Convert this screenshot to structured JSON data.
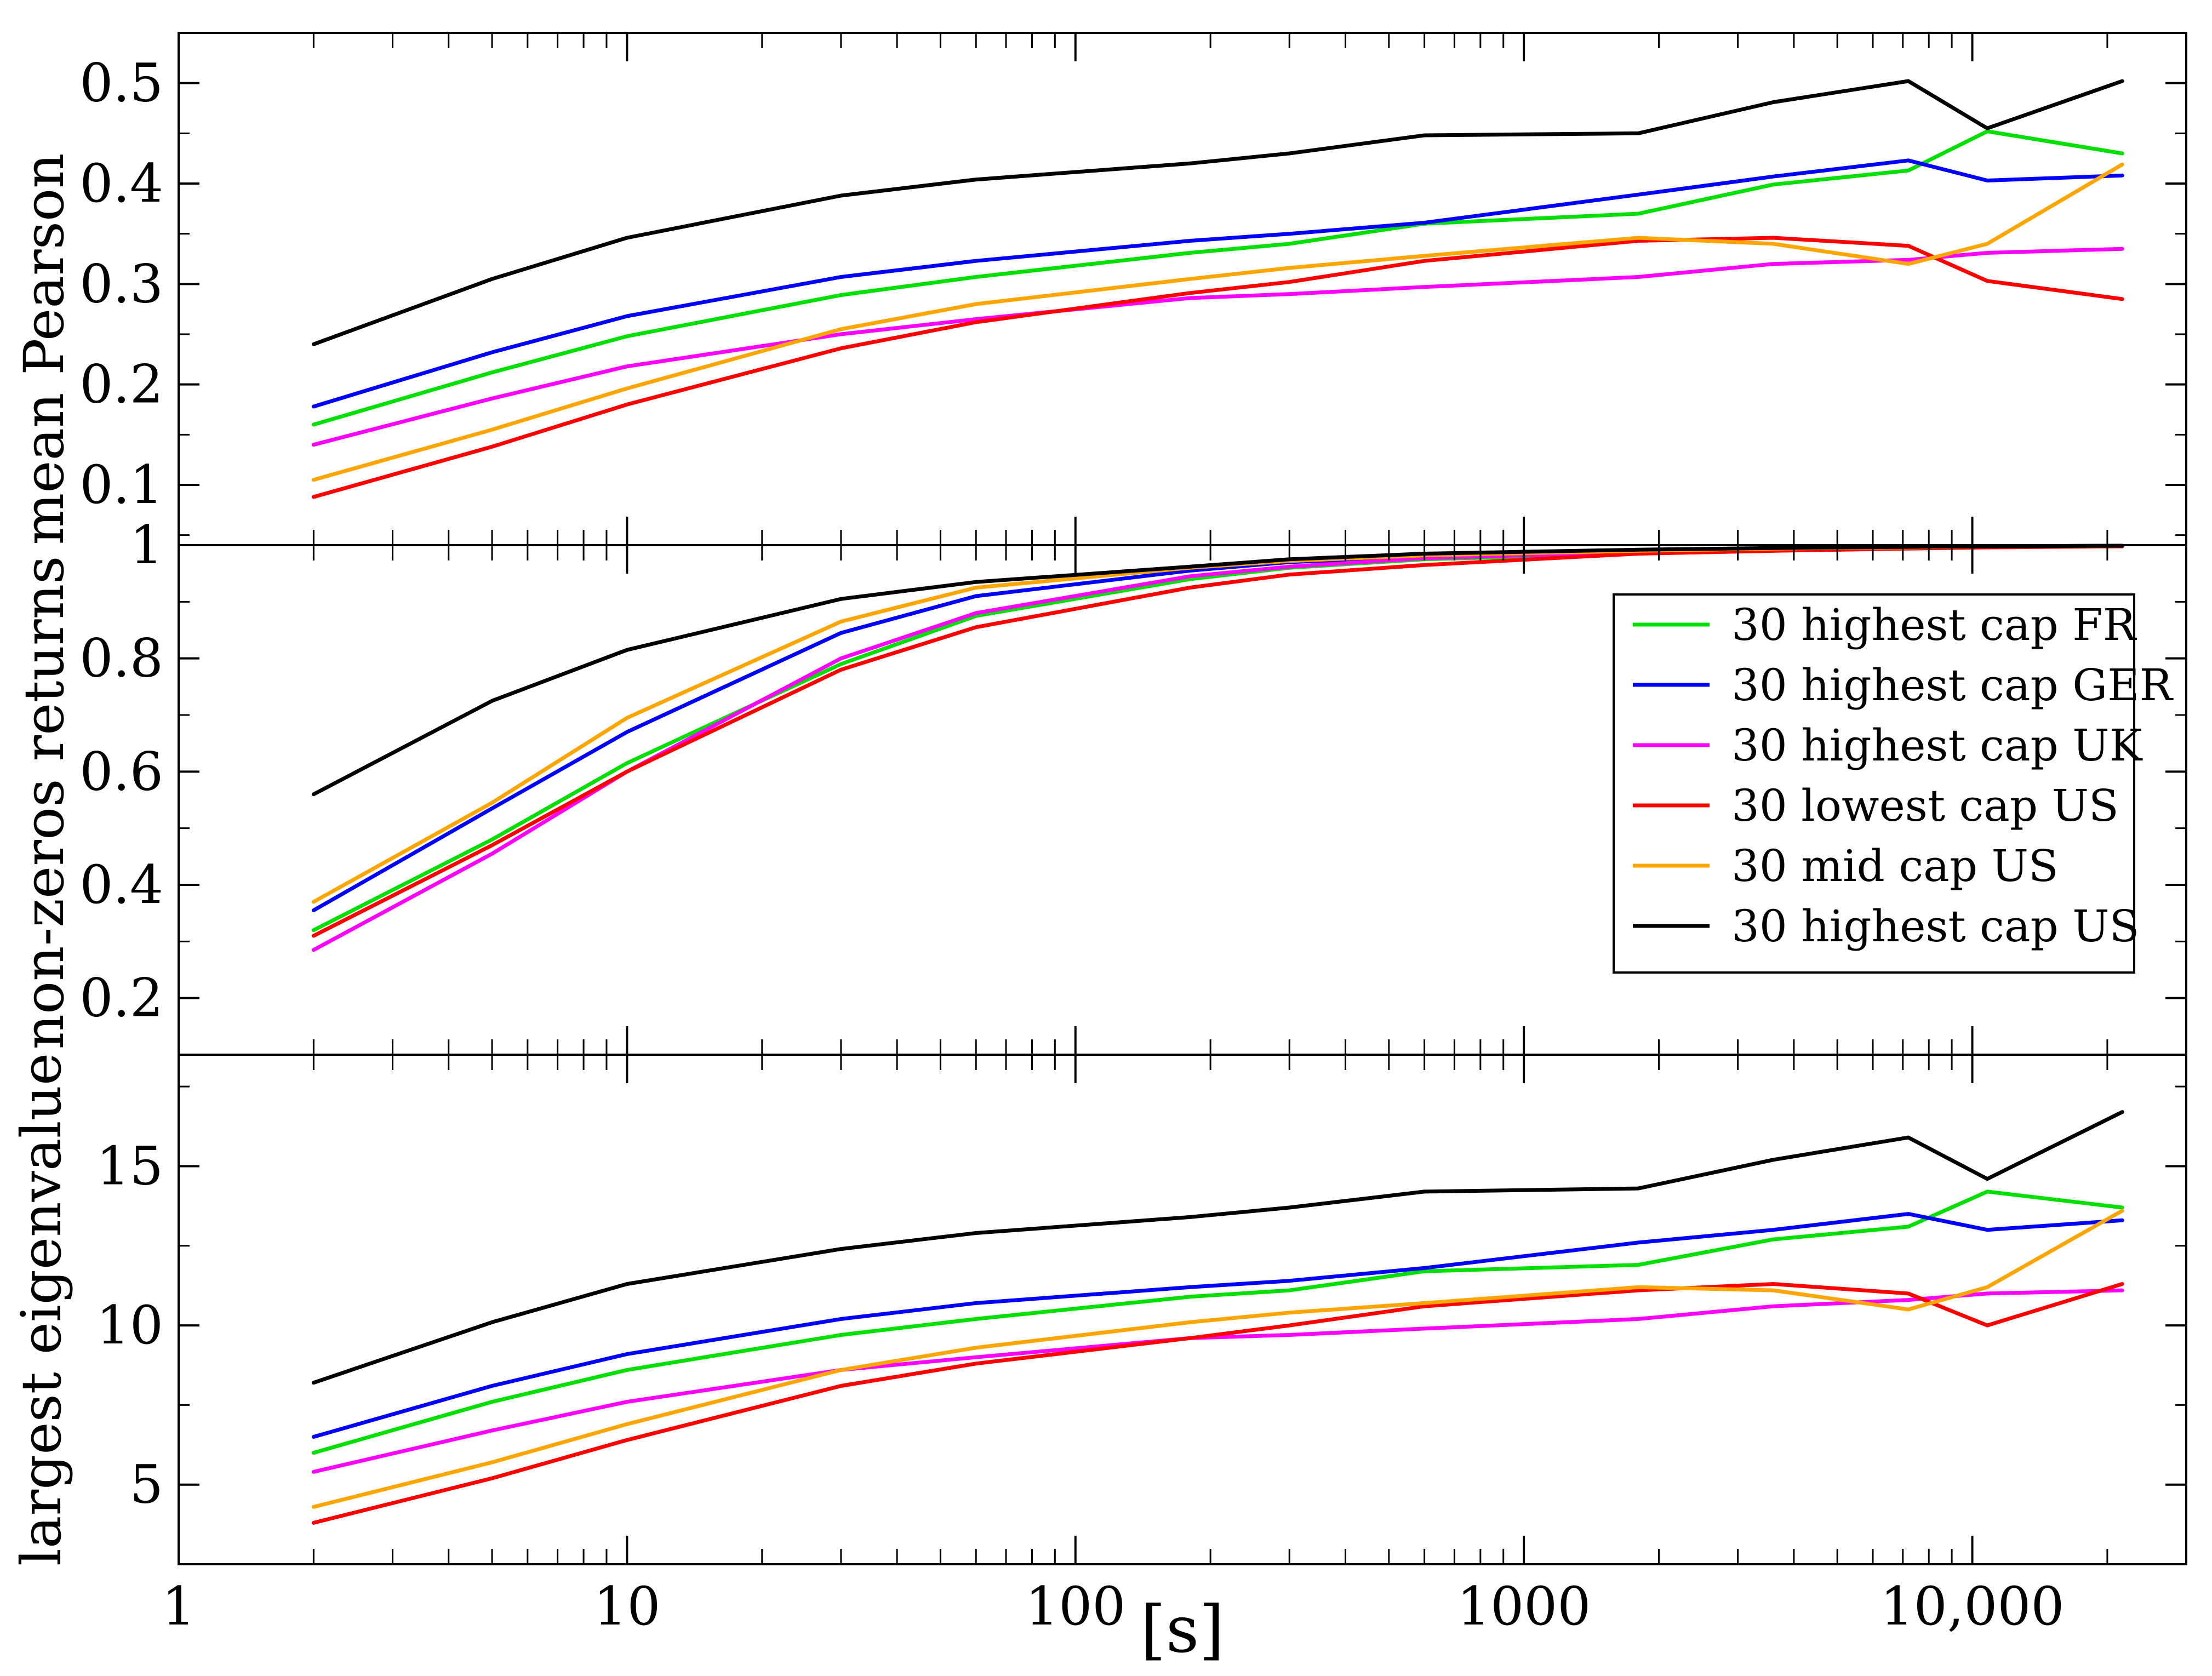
{
  "chart_data": [
    {
      "type": "line",
      "ylabel": "mean Pearson",
      "xscale": "log",
      "xlim": [
        1,
        30000
      ],
      "ylim": [
        0.04,
        0.55
      ],
      "yticks": [
        0.1,
        0.2,
        0.3,
        0.4,
        0.5
      ],
      "ytick_labels": [
        "0.1",
        "0.2",
        "0.3",
        "0.4",
        "0.5"
      ],
      "series": [
        {
          "name": "30 highest cap FR",
          "color": "#00e000",
          "x": [
            2,
            5,
            10,
            30,
            60,
            180,
            300,
            600,
            1800,
            3600,
            7200,
            10800,
            21600
          ],
          "y": [
            0.16,
            0.212,
            0.248,
            0.289,
            0.307,
            0.331,
            0.34,
            0.36,
            0.37,
            0.399,
            0.413,
            0.452,
            0.43
          ]
        },
        {
          "name": "30 highest cap GER",
          "color": "#0000ff",
          "x": [
            2,
            5,
            10,
            30,
            60,
            180,
            300,
            600,
            1800,
            3600,
            7200,
            10800,
            21600
          ],
          "y": [
            0.178,
            0.232,
            0.268,
            0.307,
            0.323,
            0.343,
            0.35,
            0.361,
            0.389,
            0.407,
            0.423,
            0.403,
            0.408
          ]
        },
        {
          "name": "30 highest cap UK",
          "color": "#ff00ff",
          "x": [
            2,
            5,
            10,
            30,
            60,
            180,
            300,
            600,
            1800,
            3600,
            7200,
            10800,
            21600
          ],
          "y": [
            0.14,
            0.186,
            0.218,
            0.25,
            0.265,
            0.286,
            0.29,
            0.297,
            0.307,
            0.32,
            0.324,
            0.331,
            0.335
          ]
        },
        {
          "name": "30 lowest cap US",
          "color": "#ff0000",
          "x": [
            2,
            5,
            10,
            30,
            60,
            180,
            300,
            600,
            1800,
            3600,
            7200,
            10800,
            21600
          ],
          "y": [
            0.088,
            0.138,
            0.18,
            0.236,
            0.262,
            0.291,
            0.302,
            0.323,
            0.343,
            0.346,
            0.338,
            0.303,
            0.285
          ]
        },
        {
          "name": "30 mid cap US",
          "color": "#ffa500",
          "x": [
            2,
            5,
            10,
            30,
            60,
            180,
            300,
            600,
            1800,
            3600,
            7200,
            10800,
            21600
          ],
          "y": [
            0.105,
            0.155,
            0.196,
            0.255,
            0.28,
            0.305,
            0.316,
            0.328,
            0.346,
            0.34,
            0.32,
            0.34,
            0.419
          ]
        },
        {
          "name": "30 highest cap US",
          "color": "#000000",
          "x": [
            2,
            5,
            10,
            30,
            60,
            180,
            300,
            600,
            1800,
            3600,
            7200,
            10800,
            21600
          ],
          "y": [
            0.24,
            0.305,
            0.346,
            0.388,
            0.404,
            0.42,
            0.43,
            0.448,
            0.45,
            0.481,
            0.502,
            0.455,
            0.502
          ]
        }
      ]
    },
    {
      "type": "line",
      "ylabel": "non-zeros returns",
      "xscale": "log",
      "xlim": [
        1,
        30000
      ],
      "ylim": [
        0.1,
        1.0
      ],
      "yticks": [
        0.2,
        0.4,
        0.6,
        0.8,
        1.0
      ],
      "ytick_labels": [
        "0.2",
        "0.4",
        "0.6",
        "0.8",
        "1"
      ],
      "series": [
        {
          "name": "30 highest cap FR",
          "color": "#00e000",
          "x": [
            2,
            5,
            10,
            30,
            60,
            180,
            300,
            600,
            1800,
            3600,
            7200,
            10800,
            21600
          ],
          "y": [
            0.32,
            0.48,
            0.615,
            0.79,
            0.875,
            0.94,
            0.96,
            0.975,
            0.985,
            0.99,
            0.995,
            0.997,
            0.998
          ]
        },
        {
          "name": "30 highest cap GER",
          "color": "#0000ff",
          "x": [
            2,
            5,
            10,
            30,
            60,
            180,
            300,
            600,
            1800,
            3600,
            7200,
            10800,
            21600
          ],
          "y": [
            0.355,
            0.535,
            0.67,
            0.845,
            0.91,
            0.955,
            0.97,
            0.98,
            0.99,
            0.993,
            0.996,
            0.998,
            0.999
          ]
        },
        {
          "name": "30 highest cap UK",
          "color": "#ff00ff",
          "x": [
            2,
            5,
            10,
            30,
            60,
            180,
            300,
            600,
            1800,
            3600,
            7200,
            10800,
            21600
          ],
          "y": [
            0.285,
            0.455,
            0.6,
            0.8,
            0.88,
            0.945,
            0.962,
            0.977,
            0.988,
            0.992,
            0.995,
            0.997,
            0.998
          ]
        },
        {
          "name": "30 lowest cap US",
          "color": "#ff0000",
          "x": [
            2,
            5,
            10,
            30,
            60,
            180,
            300,
            600,
            1800,
            3600,
            7200,
            10800,
            21600
          ],
          "y": [
            0.31,
            0.47,
            0.6,
            0.78,
            0.855,
            0.925,
            0.948,
            0.965,
            0.985,
            0.99,
            0.994,
            0.996,
            0.998
          ]
        },
        {
          "name": "30 mid cap US",
          "color": "#ffa500",
          "x": [
            2,
            5,
            10,
            30,
            60,
            180,
            300,
            600,
            1800,
            3600,
            7200,
            10800,
            21600
          ],
          "y": [
            0.37,
            0.545,
            0.695,
            0.865,
            0.925,
            0.96,
            0.972,
            0.982,
            0.99,
            0.994,
            0.996,
            0.998,
            0.999
          ]
        },
        {
          "name": "30 highest cap US",
          "color": "#000000",
          "x": [
            2,
            5,
            10,
            30,
            60,
            180,
            300,
            600,
            1800,
            3600,
            7200,
            10800,
            21600
          ],
          "y": [
            0.56,
            0.725,
            0.815,
            0.905,
            0.935,
            0.962,
            0.975,
            0.985,
            0.992,
            0.995,
            0.997,
            0.998,
            0.999
          ]
        }
      ]
    },
    {
      "type": "line",
      "ylabel": "largest eigenvalue",
      "xlabel": "[s]",
      "xscale": "log",
      "xlim": [
        1,
        30000
      ],
      "ylim": [
        2.5,
        18.5
      ],
      "yticks": [
        5,
        10,
        15
      ],
      "ytick_labels": [
        "5",
        "10",
        "15"
      ],
      "xticks": [
        1,
        10,
        100,
        1000,
        10000
      ],
      "xtick_labels": [
        "1",
        "10",
        "100",
        "1000",
        "10,000"
      ],
      "series": [
        {
          "name": "30 highest cap FR",
          "color": "#00e000",
          "x": [
            2,
            5,
            10,
            30,
            60,
            180,
            300,
            600,
            1800,
            3600,
            7200,
            10800,
            21600
          ],
          "y": [
            6.0,
            7.6,
            8.6,
            9.7,
            10.2,
            10.9,
            11.1,
            11.7,
            11.9,
            12.7,
            13.1,
            14.2,
            13.7
          ]
        },
        {
          "name": "30 highest cap GER",
          "color": "#0000ff",
          "x": [
            2,
            5,
            10,
            30,
            60,
            180,
            300,
            600,
            1800,
            3600,
            7200,
            10800,
            21600
          ],
          "y": [
            6.5,
            8.1,
            9.1,
            10.2,
            10.7,
            11.2,
            11.4,
            11.8,
            12.6,
            13.0,
            13.5,
            13.0,
            13.3
          ]
        },
        {
          "name": "30 highest cap UK",
          "color": "#ff00ff",
          "x": [
            2,
            5,
            10,
            30,
            60,
            180,
            300,
            600,
            1800,
            3600,
            7200,
            10800,
            21600
          ],
          "y": [
            5.4,
            6.7,
            7.6,
            8.6,
            9.0,
            9.6,
            9.7,
            9.9,
            10.2,
            10.6,
            10.8,
            11.0,
            11.1
          ]
        },
        {
          "name": "30 lowest cap US",
          "color": "#ff0000",
          "x": [
            2,
            5,
            10,
            30,
            60,
            180,
            300,
            600,
            1800,
            3600,
            7200,
            10800,
            21600
          ],
          "y": [
            3.8,
            5.2,
            6.4,
            8.1,
            8.8,
            9.6,
            10.0,
            10.6,
            11.1,
            11.3,
            11.0,
            10.0,
            11.3
          ]
        },
        {
          "name": "30 mid cap US",
          "color": "#ffa500",
          "x": [
            2,
            5,
            10,
            30,
            60,
            180,
            300,
            600,
            1800,
            3600,
            7200,
            10800,
            21600
          ],
          "y": [
            4.3,
            5.7,
            6.9,
            8.6,
            9.3,
            10.1,
            10.4,
            10.7,
            11.2,
            11.1,
            10.5,
            11.2,
            13.6
          ]
        },
        {
          "name": "30 highest cap US",
          "color": "#000000",
          "x": [
            2,
            5,
            10,
            30,
            60,
            180,
            300,
            600,
            1800,
            3600,
            7200,
            10800,
            21600
          ],
          "y": [
            8.2,
            10.1,
            11.3,
            12.4,
            12.9,
            13.4,
            13.7,
            14.2,
            14.3,
            15.2,
            15.9,
            14.6,
            16.7
          ]
        }
      ]
    }
  ],
  "legend": {
    "position": "middle-panel-right",
    "entries": [
      {
        "label": "30 highest cap FR",
        "color": "#00e000"
      },
      {
        "label": "30 highest cap GER",
        "color": "#0000ff"
      },
      {
        "label": "30 highest cap UK",
        "color": "#ff00ff"
      },
      {
        "label": "30 lowest cap US",
        "color": "#ff0000"
      },
      {
        "label": "30 mid cap US",
        "color": "#ffa500"
      },
      {
        "label": "30 highest cap US",
        "color": "#000000"
      }
    ]
  }
}
